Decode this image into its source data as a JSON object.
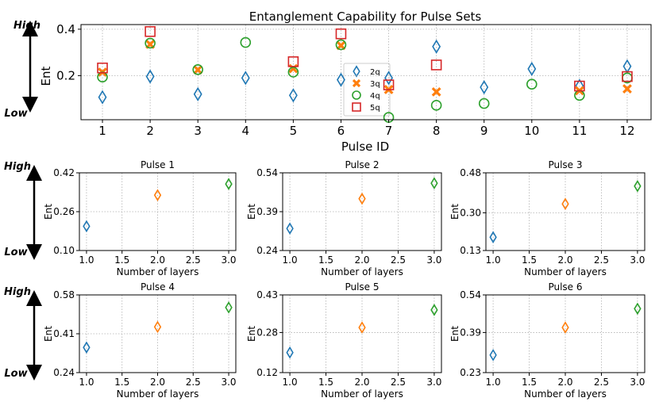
{
  "colors": {
    "2q": "#1f77b4",
    "3q": "#ff7f0e",
    "4q": "#2ca02c",
    "5q": "#d62728"
  },
  "scale_labels": {
    "high": "High",
    "low": "Low"
  },
  "chart_data": [
    {
      "id": "main",
      "type": "scatter",
      "title": "Entanglement Capability for Pulse Sets",
      "xlabel": "Pulse ID",
      "ylabel": "Ent",
      "xlim": [
        0.55,
        12.5
      ],
      "ylim": [
        0.01,
        0.42
      ],
      "xticks": [
        1,
        2,
        3,
        4,
        5,
        6,
        7,
        8,
        9,
        10,
        11,
        12
      ],
      "yticks": [
        0.2,
        0.4
      ],
      "ytick_labels": [
        "0.2",
        "0.4"
      ],
      "legend": {
        "position": "center",
        "entries": [
          "2q",
          "3q",
          "4q",
          "5q"
        ]
      },
      "series": [
        {
          "name": "2q",
          "marker": "diamond",
          "x": [
            1,
            2,
            3,
            4,
            5,
            6,
            7,
            8,
            9,
            10,
            11,
            12
          ],
          "y": [
            0.107,
            0.196,
            0.12,
            0.19,
            0.115,
            0.182,
            0.19,
            0.325,
            0.15,
            0.229,
            0.156,
            0.24
          ]
        },
        {
          "name": "3q",
          "marker": "xcircle",
          "x": [
            1,
            2,
            3,
            5,
            6,
            7,
            8,
            11,
            12
          ],
          "y": [
            0.215,
            0.335,
            0.225,
            0.23,
            0.33,
            0.14,
            0.13,
            0.135,
            0.143
          ]
        },
        {
          "name": "4q",
          "marker": "circle",
          "x": [
            1,
            2,
            3,
            4,
            5,
            6,
            7,
            8,
            9,
            10,
            11,
            12
          ],
          "y": [
            0.194,
            0.34,
            0.226,
            0.343,
            0.215,
            0.333,
            0.02,
            0.072,
            0.08,
            0.163,
            0.115,
            0.19
          ]
        },
        {
          "name": "5q",
          "marker": "square",
          "x": [
            1,
            2,
            5,
            6,
            7,
            8,
            11,
            12
          ],
          "y": [
            0.233,
            0.39,
            0.26,
            0.38,
            0.16,
            0.246,
            0.155,
            0.196
          ]
        }
      ]
    },
    {
      "id": "pulse1",
      "type": "scatter",
      "title": "Pulse 1",
      "xlabel": "Number of layers",
      "ylabel": "Ent",
      "xlim": [
        0.9,
        3.1
      ],
      "ylim": [
        0.1,
        0.42
      ],
      "xticks": [
        1.0,
        1.5,
        2.0,
        2.5,
        3.0
      ],
      "xtick_labels": [
        "1.0",
        "1.5",
        "2.0",
        "2.5",
        "3.0"
      ],
      "yticks": [
        0.1,
        0.26,
        0.42
      ],
      "ytick_labels": [
        "0.10",
        "0.26",
        "0.42"
      ],
      "points": [
        {
          "x": 1,
          "y": 0.2,
          "series": "2q"
        },
        {
          "x": 2,
          "y": 0.328,
          "series": "3q"
        },
        {
          "x": 3,
          "y": 0.374,
          "series": "4q"
        }
      ]
    },
    {
      "id": "pulse2",
      "type": "scatter",
      "title": "Pulse 2",
      "xlabel": "Number of layers",
      "ylabel": "Ent",
      "xlim": [
        0.9,
        3.1
      ],
      "ylim": [
        0.24,
        0.54
      ],
      "xticks": [
        1.0,
        1.5,
        2.0,
        2.5,
        3.0
      ],
      "xtick_labels": [
        "1.0",
        "1.5",
        "2.0",
        "2.5",
        "3.0"
      ],
      "yticks": [
        0.24,
        0.39,
        0.54
      ],
      "ytick_labels": [
        "0.24",
        "0.39",
        "0.54"
      ],
      "points": [
        {
          "x": 1,
          "y": 0.325,
          "series": "2q"
        },
        {
          "x": 2,
          "y": 0.44,
          "series": "3q"
        },
        {
          "x": 3,
          "y": 0.5,
          "series": "4q"
        }
      ]
    },
    {
      "id": "pulse3",
      "type": "scatter",
      "title": "Pulse 3",
      "xlabel": "Number of layers",
      "ylabel": "Ent",
      "xlim": [
        0.9,
        3.1
      ],
      "ylim": [
        0.13,
        0.48
      ],
      "xticks": [
        1.0,
        1.5,
        2.0,
        2.5,
        3.0
      ],
      "xtick_labels": [
        "1.0",
        "1.5",
        "2.0",
        "2.5",
        "3.0"
      ],
      "yticks": [
        0.13,
        0.3,
        0.48
      ],
      "ytick_labels": [
        "0.13",
        "0.30",
        "0.48"
      ],
      "points": [
        {
          "x": 1,
          "y": 0.19,
          "series": "2q"
        },
        {
          "x": 2,
          "y": 0.34,
          "series": "3q"
        },
        {
          "x": 3,
          "y": 0.42,
          "series": "4q"
        }
      ]
    },
    {
      "id": "pulse4",
      "type": "scatter",
      "title": "Pulse 4",
      "xlabel": "Number of layers",
      "ylabel": "Ent",
      "xlim": [
        0.9,
        3.1
      ],
      "ylim": [
        0.24,
        0.58
      ],
      "xticks": [
        1.0,
        1.5,
        2.0,
        2.5,
        3.0
      ],
      "xtick_labels": [
        "1.0",
        "1.5",
        "2.0",
        "2.5",
        "3.0"
      ],
      "yticks": [
        0.24,
        0.41,
        0.58
      ],
      "ytick_labels": [
        "0.24",
        "0.41",
        "0.58"
      ],
      "points": [
        {
          "x": 1,
          "y": 0.35,
          "series": "2q"
        },
        {
          "x": 2,
          "y": 0.44,
          "series": "3q"
        },
        {
          "x": 3,
          "y": 0.525,
          "series": "4q"
        }
      ]
    },
    {
      "id": "pulse5",
      "type": "scatter",
      "title": "Pulse 5",
      "xlabel": "Number of layers",
      "ylabel": "Ent",
      "xlim": [
        0.9,
        3.1
      ],
      "ylim": [
        0.12,
        0.43
      ],
      "xticks": [
        1.0,
        1.5,
        2.0,
        2.5,
        3.0
      ],
      "xtick_labels": [
        "1.0",
        "1.5",
        "2.0",
        "2.5",
        "3.0"
      ],
      "yticks": [
        0.12,
        0.28,
        0.43
      ],
      "ytick_labels": [
        "0.12",
        "0.28",
        "0.43"
      ],
      "points": [
        {
          "x": 1,
          "y": 0.2,
          "series": "2q"
        },
        {
          "x": 2,
          "y": 0.3,
          "series": "3q"
        },
        {
          "x": 3,
          "y": 0.37,
          "series": "4q"
        }
      ]
    },
    {
      "id": "pulse6",
      "type": "scatter",
      "title": "Pulse 6",
      "xlabel": "Number of layers",
      "ylabel": "Ent",
      "xlim": [
        0.9,
        3.1
      ],
      "ylim": [
        0.23,
        0.54
      ],
      "xticks": [
        1.0,
        1.5,
        2.0,
        2.5,
        3.0
      ],
      "xtick_labels": [
        "1.0",
        "1.5",
        "2.0",
        "2.5",
        "3.0"
      ],
      "yticks": [
        0.23,
        0.39,
        0.54
      ],
      "ytick_labels": [
        "0.23",
        "0.39",
        "0.54"
      ],
      "points": [
        {
          "x": 1,
          "y": 0.3,
          "series": "2q"
        },
        {
          "x": 2,
          "y": 0.41,
          "series": "3q"
        },
        {
          "x": 3,
          "y": 0.485,
          "series": "4q"
        }
      ]
    }
  ]
}
